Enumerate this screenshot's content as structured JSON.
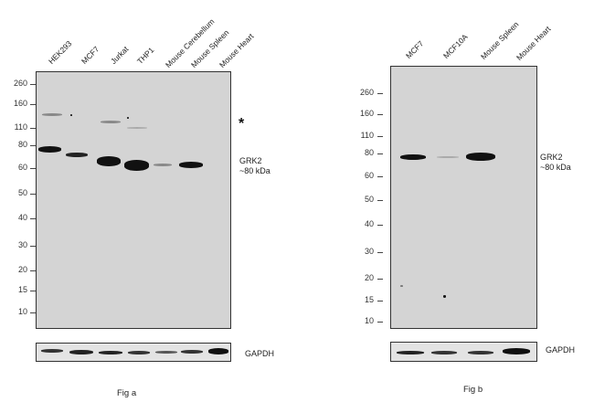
{
  "fig_a": {
    "caption": "Fig a",
    "lanes": [
      "HEK293",
      "MCF7",
      "Jurkat",
      "THP1",
      "Mouse Cerebellum",
      "Mouse Spleen",
      "Mouse Heart"
    ],
    "mw_markers": [
      "260",
      "160",
      "110",
      "80",
      "60",
      "50",
      "40",
      "30",
      "20",
      "15",
      "10"
    ],
    "band_label_line1": "GRK2",
    "band_label_line2": "~80 kDa",
    "star": "*",
    "loading_label": "GAPDH"
  },
  "fig_b": {
    "caption": "Fig b",
    "lanes": [
      "MCF7",
      "MCF10A",
      "Mouse Spleen",
      "Mouse Heart"
    ],
    "mw_markers": [
      "260",
      "160",
      "110",
      "80",
      "60",
      "50",
      "40",
      "30",
      "20",
      "15",
      "10"
    ],
    "band_label_line1": "GRK2",
    "band_label_line2": "~80 kDa",
    "loading_label": "GAPDH"
  }
}
